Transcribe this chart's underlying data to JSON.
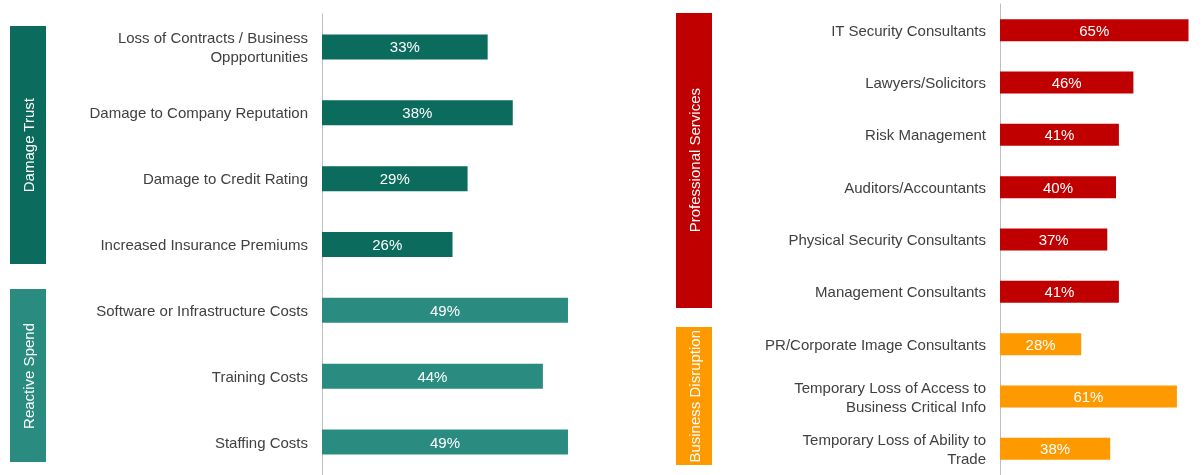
{
  "chart_data": [
    {
      "type": "bar",
      "orientation": "horizontal",
      "stacked": true,
      "categories": [
        "Loss of Contracts / Business\nOppportunities",
        "Damage to Company Reputation",
        "Damage to Credit Rating",
        "Increased Insurance Premiums",
        "Software or Infrastructure Costs",
        "Training Costs",
        "Staffing Costs"
      ],
      "annotations": [
        "Damage Trust",
        "Reactive Spend"
      ],
      "series": [
        {
          "color": "#0b6b5c",
          "values": [
            33,
            38,
            29,
            26,
            null,
            null,
            null
          ],
          "value_labels": [
            "33%",
            "38%",
            "29%",
            "26%",
            null,
            null,
            null
          ]
        },
        {
          "color": "#2a8c80",
          "values": [
            null,
            null,
            null,
            null,
            49,
            44,
            49
          ],
          "value_labels": [
            null,
            null,
            null,
            null,
            "49%",
            "44%",
            "49%"
          ]
        }
      ]
    },
    {
      "type": "bar",
      "orientation": "horizontal",
      "stacked": true,
      "categories": [
        "IT Security Consultants",
        "Lawyers/Solicitors",
        "Risk Management",
        "Auditors/Accountants",
        "Physical Security Consultants",
        "Management Consultants",
        "PR/Corporate Image Consultants",
        "Temporary Loss of Access to\nBusiness Critical Info",
        "Temporary Loss of Ability to\nTrade"
      ],
      "annotations": [
        "Professional Services",
        "Business Disruption"
      ],
      "series": [
        {
          "color": "#c00000",
          "values": [
            65,
            46,
            41,
            40,
            37,
            41,
            null,
            null,
            null
          ],
          "value_labels": [
            "65%",
            "46%",
            "41%",
            "40%",
            "37%",
            "41%",
            null,
            null,
            null
          ]
        },
        {
          "color": "#ff9900",
          "values": [
            null,
            null,
            null,
            null,
            null,
            null,
            28,
            61,
            38
          ],
          "value_labels": [
            null,
            null,
            null,
            null,
            null,
            null,
            "28%",
            "61%",
            "38%"
          ]
        }
      ]
    }
  ]
}
